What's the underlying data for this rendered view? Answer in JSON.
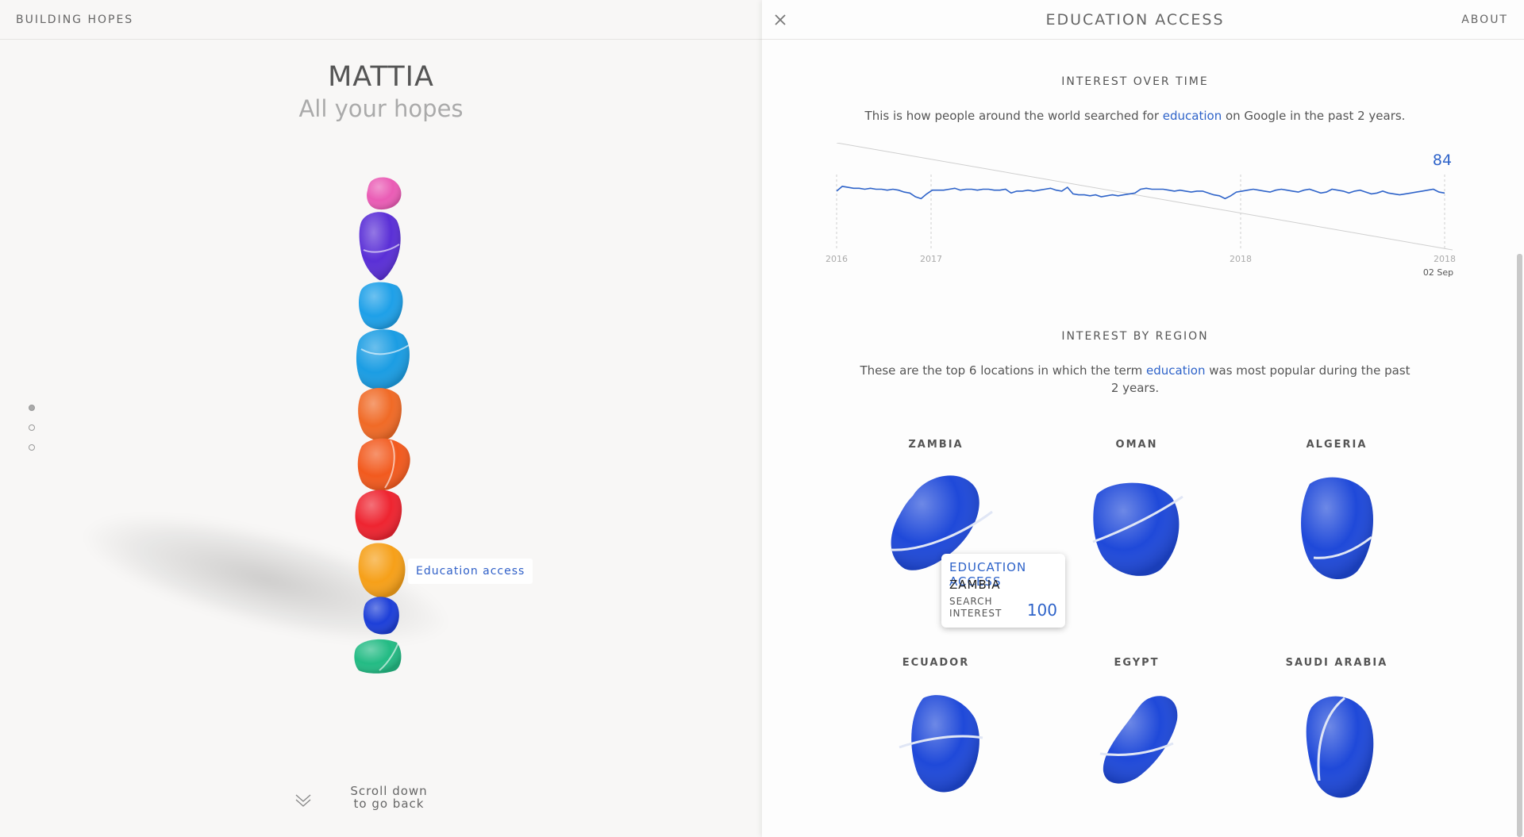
{
  "header": {
    "brand": "BUILDING HOPES"
  },
  "left": {
    "name": "MATTIA",
    "subtitle": "All your hopes",
    "stone_label": "Education access",
    "scroll_hint": [
      "Scroll down",
      "to go back"
    ],
    "stones": [
      {
        "color": "#ea5cb5"
      },
      {
        "color": "#5a2fd6"
      },
      {
        "color": "#1ea0e8"
      },
      {
        "color": "#1b9de3"
      },
      {
        "color": "#f06a26"
      },
      {
        "color": "#f25a1e"
      },
      {
        "color": "#ee2430"
      },
      {
        "color": "#f6a019"
      },
      {
        "color": "#1d3fd8"
      },
      {
        "color": "#23bb84"
      }
    ]
  },
  "panel": {
    "title": "EDUCATION ACCESS",
    "about": "ABOUT",
    "interest_over_time": {
      "heading": "INTEREST OVER TIME",
      "desc_before": "This is how people around the world searched for ",
      "term": "education",
      "desc_after": " on Google in the past 2 years."
    },
    "interest_by_region": {
      "heading": "INTEREST BY REGION",
      "desc_line1_before": "These are the top 6 locations in which the term ",
      "term": "education",
      "desc_line1_after": " was most popular during the past",
      "desc_line2": "2 years.",
      "regions": [
        {
          "name": "ZAMBIA"
        },
        {
          "name": "OMAN"
        },
        {
          "name": "ALGERIA"
        },
        {
          "name": "ECUADOR"
        },
        {
          "name": "EGYPT"
        },
        {
          "name": "SAUDI ARABIA"
        }
      ]
    },
    "tooltip": {
      "title": "EDUCATION ACCESS",
      "country": "ZAMBIA",
      "label_line1": "SEARCH",
      "label_line2": "INTEREST",
      "value": "100"
    }
  },
  "colors": {
    "accent": "#2e63c9",
    "stone_blue": "#1f49d9"
  },
  "chart_data": {
    "type": "line",
    "x_tick_labels": [
      "2016",
      "2017",
      "2018",
      "2018"
    ],
    "current_value": "84",
    "current_date": "02 Sep",
    "series": [
      {
        "values": [
          86,
          91,
          90,
          89,
          89,
          88,
          89,
          88,
          88,
          87,
          88,
          87,
          85,
          84,
          80,
          78,
          83,
          87,
          87,
          87,
          88,
          89,
          87,
          88,
          88,
          87,
          88,
          88,
          87,
          87,
          88,
          84,
          86,
          86,
          87,
          86,
          87,
          88,
          89,
          87,
          86,
          90,
          83,
          82,
          82,
          81,
          82,
          80,
          81,
          82,
          81,
          82,
          83,
          84,
          88,
          89,
          88,
          88,
          88,
          87,
          86,
          87,
          86,
          85,
          86,
          86,
          84,
          82,
          81,
          78,
          81,
          85,
          86,
          87,
          88,
          87,
          86,
          85,
          87,
          88,
          87,
          86,
          85,
          87,
          88,
          86,
          84,
          85,
          88,
          87,
          86,
          84,
          86,
          87,
          85,
          83,
          84,
          86,
          84,
          83,
          82,
          83,
          84,
          85,
          86,
          87,
          88,
          85,
          84
        ]
      }
    ]
  }
}
